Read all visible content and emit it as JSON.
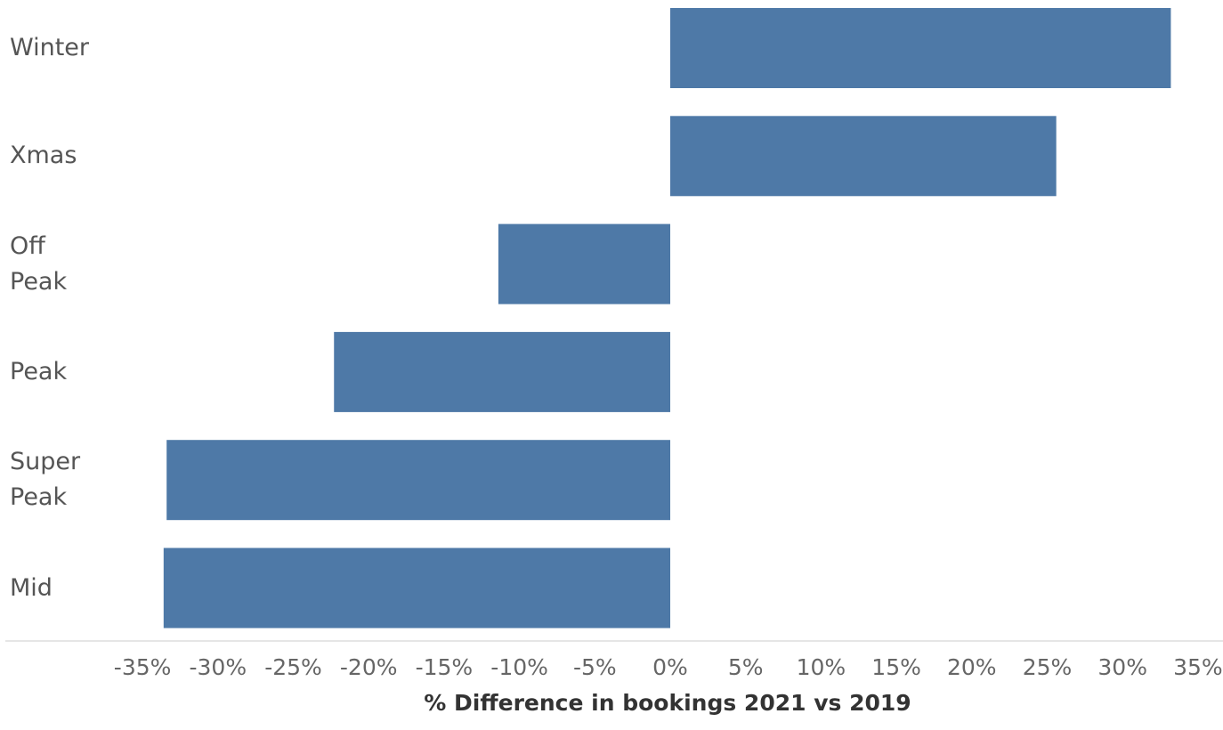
{
  "chart_data": {
    "type": "bar",
    "orientation": "horizontal",
    "categories": [
      "Winter",
      "Xmas",
      "Off\nPeak",
      "Peak",
      "Super\nPeak",
      "Mid"
    ],
    "values": [
      33.2,
      25.6,
      -11.4,
      -22.3,
      -33.4,
      -33.6
    ],
    "xlabel": "% Difference in bookings 2021 vs 2019",
    "ylabel": "",
    "xlim": [
      -35,
      35
    ],
    "xticks": [
      "-35%",
      "-30%",
      "-25%",
      "-20%",
      "-15%",
      "-10%",
      "-5%",
      "0%",
      "5%",
      "10%",
      "15%",
      "20%",
      "25%",
      "30%",
      "35%"
    ],
    "grid": false,
    "bar_color": "#4e79a7"
  }
}
